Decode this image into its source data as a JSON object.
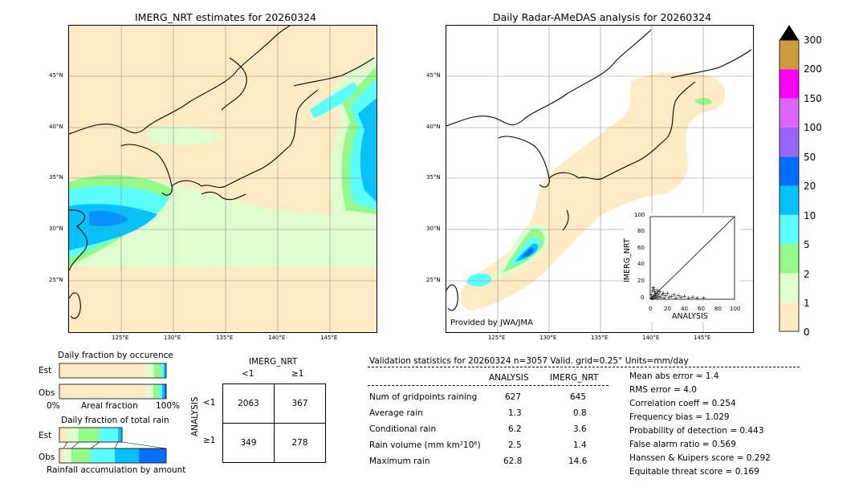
{
  "left_map": {
    "title": "IMERG_NRT estimates for 20260324",
    "lat_labels": [
      "45°N",
      "40°N",
      "35°N",
      "30°N",
      "25°N"
    ],
    "lon_labels": [
      "125°E",
      "130°E",
      "135°E",
      "140°E",
      "145°E"
    ]
  },
  "right_map": {
    "title": "Daily Radar-AMeDAS analysis for 20260324",
    "lat_labels": [
      "45°N",
      "40°N",
      "35°N",
      "30°N",
      "25°N"
    ],
    "lon_labels": [
      "125°E",
      "130°E",
      "135°E",
      "140°E",
      "145°E"
    ],
    "credit": "Provided by JWA/JMA"
  },
  "colorbar": {
    "ticks": [
      "300",
      "200",
      "150",
      "100",
      "50",
      "20",
      "10",
      "5",
      "2",
      "1",
      "0"
    ],
    "colors": [
      "#feebc3",
      "#e0fdd0",
      "#93f98a",
      "#5cfdfd",
      "#07c2fa",
      "#066efc",
      "#9966fc",
      "#dc66fc",
      "#fc00fc",
      "#cd9a3c"
    ],
    "extend_color": "#000000"
  },
  "scatter_inset": {
    "xlabel": "ANALYSIS",
    "ylabel": "IMERG_NRT",
    "x_ticks": [
      "0",
      "20",
      "40",
      "60",
      "80",
      "100"
    ],
    "y_ticks": [
      "0",
      "20",
      "40",
      "60",
      "80",
      "100"
    ]
  },
  "occurrence": {
    "title": "Daily fraction by occurence",
    "rows": [
      "Est",
      "Obs"
    ],
    "xlabel_left": "0%",
    "xlabel_mid": "Areal fraction",
    "xlabel_right": "100%"
  },
  "total_rain": {
    "title": "Daily fraction of total rain",
    "rows": [
      "Est",
      "Obs"
    ],
    "xlabel": "Rainfall accumulation by amount"
  },
  "contingency": {
    "title": "IMERG_NRT",
    "col_labels": [
      "<1",
      "≥1"
    ],
    "row_title": "ANALYSIS",
    "row_labels": [
      "<1",
      "≥1"
    ],
    "cells": [
      [
        "2063",
        "367"
      ],
      [
        "349",
        "278"
      ]
    ]
  },
  "validation": {
    "header": "Validation statistics for 20260324  n=3057 Valid. grid=0.25° Units=mm/day",
    "col_analysis": "ANALYSIS",
    "col_imerg": "IMERG_NRT",
    "rows": [
      {
        "label": "Num of gridpoints raining",
        "analysis": "627",
        "imerg": "645"
      },
      {
        "label": "Average rain",
        "analysis": "1.3",
        "imerg": "0.8"
      },
      {
        "label": "Conditional rain",
        "analysis": "6.2",
        "imerg": "3.6"
      },
      {
        "label": "Rain volume (mm km²10⁶)",
        "analysis": "2.5",
        "imerg": "1.4"
      },
      {
        "label": "Maximum rain",
        "analysis": "62.8",
        "imerg": "14.6"
      }
    ],
    "scores": [
      "Mean abs error =    1.4",
      "RMS error =    4.0",
      "Correlation coeff =  0.254",
      "Frequency bias =  1.029",
      "Probability of detection =  0.443",
      "False alarm ratio =  0.569",
      "Hanssen & Kuipers score =  0.292",
      "Equitable threat score =  0.169"
    ]
  },
  "chart_data": {
    "type": "scatter",
    "xlabel": "ANALYSIS",
    "ylabel": "IMERG_NRT",
    "xlim": [
      0,
      100
    ],
    "ylim": [
      0,
      100
    ],
    "points": [
      [
        1,
        2
      ],
      [
        2,
        1
      ],
      [
        3,
        4
      ],
      [
        4,
        2
      ],
      [
        5,
        6
      ],
      [
        6,
        3
      ],
      [
        7,
        5
      ],
      [
        8,
        2
      ],
      [
        10,
        4
      ],
      [
        12,
        3
      ],
      [
        14,
        6
      ],
      [
        16,
        2
      ],
      [
        18,
        5
      ],
      [
        20,
        8
      ],
      [
        22,
        3
      ],
      [
        25,
        4
      ],
      [
        28,
        6
      ],
      [
        30,
        2
      ],
      [
        33,
        5
      ],
      [
        36,
        3
      ],
      [
        40,
        4
      ],
      [
        45,
        2
      ],
      [
        50,
        3
      ],
      [
        55,
        2
      ],
      [
        62.8,
        2
      ],
      [
        2,
        10
      ],
      [
        4,
        12
      ],
      [
        6,
        8
      ],
      [
        8,
        11
      ],
      [
        3,
        14.6
      ],
      [
        1,
        6
      ],
      [
        5,
        9
      ],
      [
        9,
        7
      ],
      [
        11,
        9
      ],
      [
        15,
        8
      ]
    ]
  }
}
